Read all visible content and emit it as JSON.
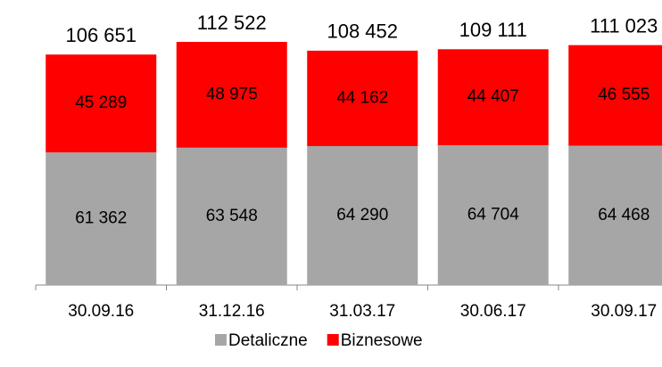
{
  "chart_data": {
    "type": "stacked_bar",
    "categories": [
      "30.09.16",
      "31.12.16",
      "31.03.17",
      "30.06.17",
      "30.09.17"
    ],
    "series": [
      {
        "name": "Detaliczne",
        "color": "#a6a6a6",
        "values": [
          61362,
          63548,
          64290,
          64704,
          64468
        ],
        "value_labels": [
          "61 362",
          "63 548",
          "64 290",
          "64 704",
          "64 468"
        ]
      },
      {
        "name": "Biznesowe",
        "color": "#ff0000",
        "values": [
          45289,
          48975,
          44162,
          44407,
          46555
        ],
        "value_labels": [
          "45 289",
          "48 975",
          "44 162",
          "44 407",
          "46 555"
        ]
      }
    ],
    "totals": [
      106651,
      112522,
      108452,
      109111,
      111023
    ],
    "total_labels": [
      "106 651",
      "112 522",
      "108 452",
      "109 111",
      "111 023"
    ],
    "legend": "bottom"
  }
}
